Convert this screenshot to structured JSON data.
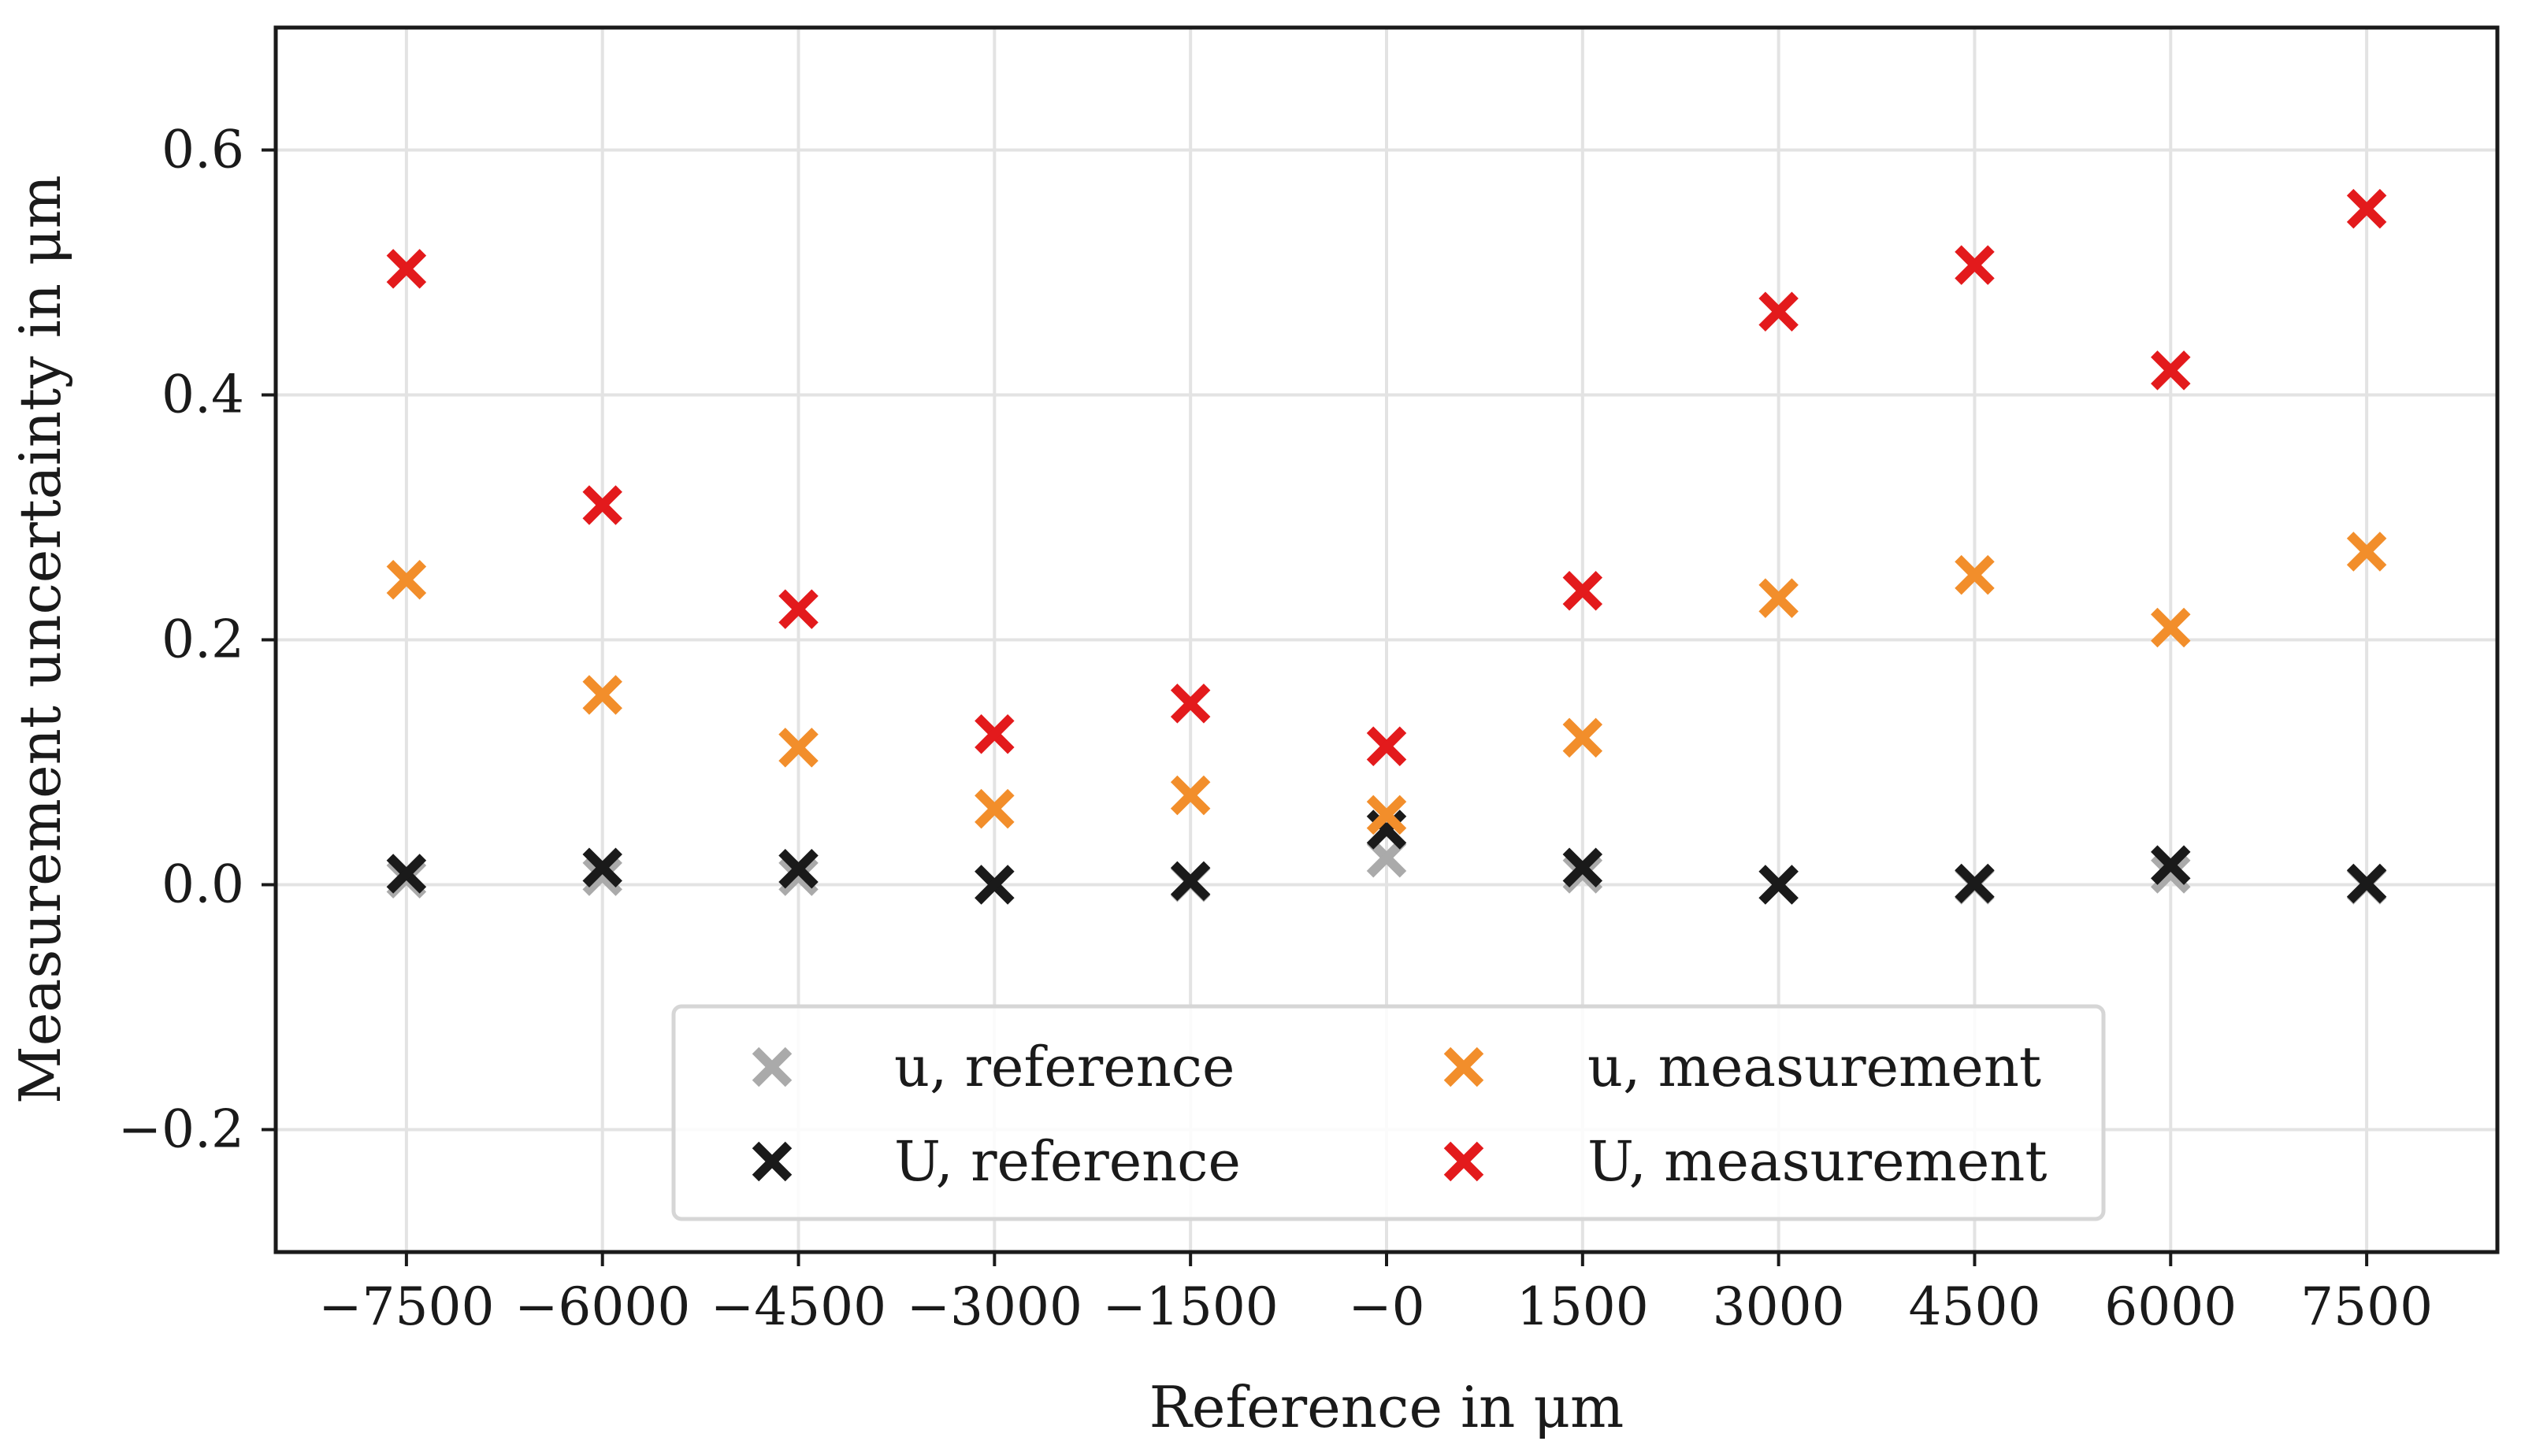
{
  "chart_data": {
    "type": "scatter",
    "xlabel": "Reference in μm",
    "ylabel": "Measurement uncertainty in μm",
    "xlim": [
      -8500,
      8500
    ],
    "ylim": [
      -0.3,
      0.7
    ],
    "grid": true,
    "legend_position": "lower-center",
    "x_ticks": [
      -7500,
      -6000,
      -4500,
      -3000,
      -1500,
      0,
      1500,
      3000,
      4500,
      6000,
      7500
    ],
    "x_tick_labels": [
      "−7500",
      "−6000",
      "−4500",
      "−3000",
      "−1500",
      "−0",
      "1500",
      "3000",
      "4500",
      "6000",
      "7500"
    ],
    "y_ticks": [
      -0.2,
      0.0,
      0.2,
      0.4,
      0.6
    ],
    "y_tick_labels": [
      "−0.2",
      "0.0",
      "0.2",
      "0.4",
      "0.6"
    ],
    "x": [
      -7500,
      -6000,
      -4500,
      -3000,
      -1500,
      0,
      1500,
      3000,
      4500,
      6000,
      7500
    ],
    "series": [
      {
        "name": "u, reference",
        "color": "#aaaaaa",
        "marker": "x",
        "values": [
          0.005,
          0.007,
          0.007,
          0.0,
          0.002,
          0.022,
          0.009,
          0.0,
          0.0,
          0.009,
          0.0
        ]
      },
      {
        "name": "U, reference",
        "color": "#1a1a1a",
        "marker": "x",
        "values": [
          0.009,
          0.014,
          0.013,
          0.0,
          0.003,
          0.045,
          0.014,
          0.0,
          0.001,
          0.016,
          0.001
        ]
      },
      {
        "name": "u, measurement",
        "color": "#f28e2b",
        "marker": "x",
        "values": [
          0.249,
          0.155,
          0.112,
          0.062,
          0.073,
          0.057,
          0.12,
          0.234,
          0.253,
          0.21,
          0.272
        ]
      },
      {
        "name": "U, measurement",
        "color": "#e31a1c",
        "marker": "x",
        "values": [
          0.503,
          0.31,
          0.225,
          0.123,
          0.148,
          0.113,
          0.24,
          0.468,
          0.506,
          0.42,
          0.552
        ]
      }
    ],
    "legend": {
      "columns": [
        [
          "u, reference",
          "U, reference"
        ],
        [
          "u, measurement",
          "U, measurement"
        ]
      ]
    }
  }
}
